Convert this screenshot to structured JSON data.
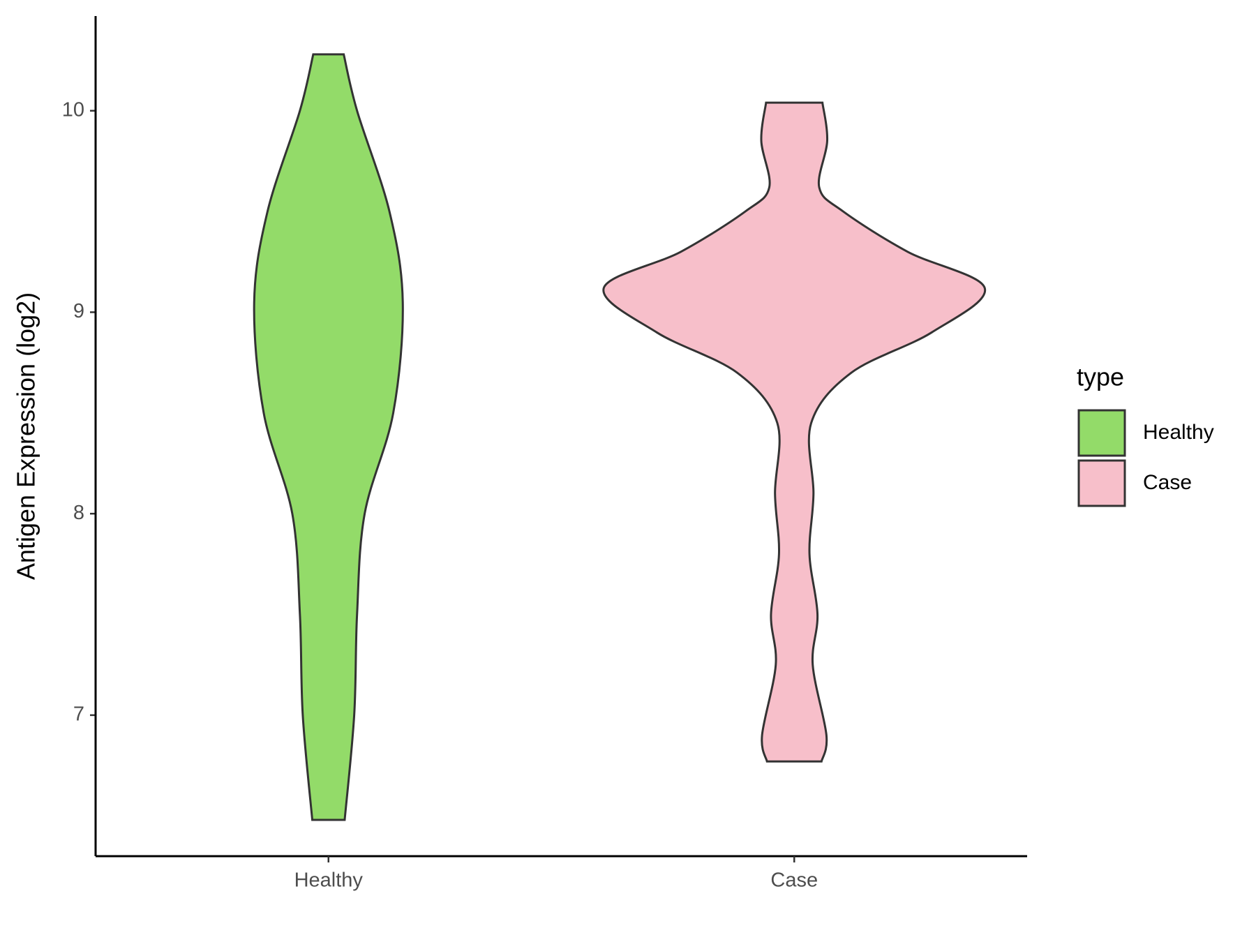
{
  "chart_data": {
    "type": "violin",
    "y_label": "Antigen Expression (log2)",
    "categories": [
      "Healthy",
      "Case"
    ],
    "violins": [
      {
        "name": "Healthy",
        "color": "#93db69",
        "y": [
          6.48,
          7.0,
          7.5,
          8.0,
          8.5,
          9.05,
          9.5,
          10.0,
          10.28
        ],
        "density": [
          0.085,
          0.135,
          0.15,
          0.19,
          0.34,
          0.39,
          0.32,
          0.15,
          0.08
        ]
      },
      {
        "name": "Case",
        "color": "#f7bfca",
        "y": [
          6.77,
          6.9,
          7.25,
          7.5,
          7.8,
          8.1,
          8.45,
          8.7,
          8.9,
          9.12,
          9.3,
          9.5,
          9.62,
          9.85,
          10.04
        ],
        "density": [
          0.143,
          0.169,
          0.097,
          0.122,
          0.08,
          0.101,
          0.089,
          0.3,
          0.722,
          1.0,
          0.595,
          0.257,
          0.131,
          0.173,
          0.148
        ]
      }
    ],
    "ylim": [
      6.3,
      10.47
    ],
    "yticks": [
      7,
      8,
      9,
      10
    ],
    "legend_title": "type",
    "legend_position": "right"
  }
}
